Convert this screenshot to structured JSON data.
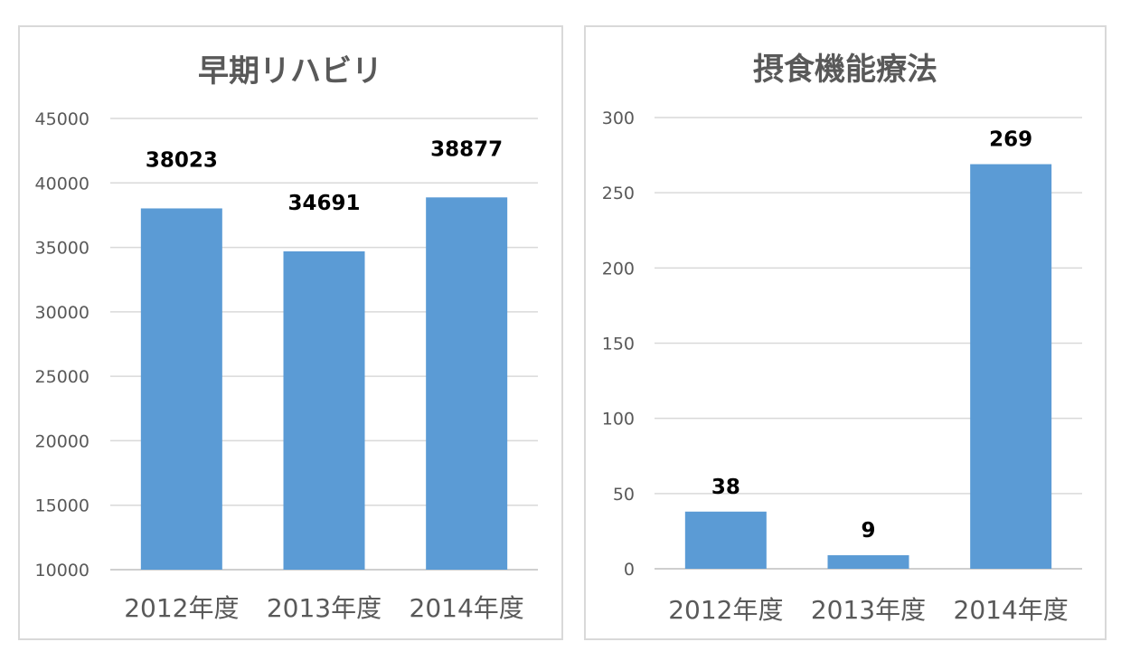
{
  "chart_data": [
    {
      "type": "bar",
      "title": "早期リハビリ",
      "categories": [
        "2012年度",
        "2013年度",
        "2014年度"
      ],
      "values": [
        38023,
        34691,
        38877
      ],
      "ylim": [
        10000,
        45000
      ],
      "yticks": [
        10000,
        15000,
        20000,
        25000,
        30000,
        35000,
        40000,
        45000
      ],
      "grid": true,
      "bar_color": "#5b9bd5"
    },
    {
      "type": "bar",
      "title": "摂食機能療法",
      "categories": [
        "2012年度",
        "2013年度",
        "2014年度"
      ],
      "values": [
        38,
        9,
        269
      ],
      "ylim": [
        0,
        300
      ],
      "yticks": [
        0,
        50,
        100,
        150,
        200,
        250,
        300
      ],
      "grid": true,
      "bar_color": "#5b9bd5"
    }
  ]
}
